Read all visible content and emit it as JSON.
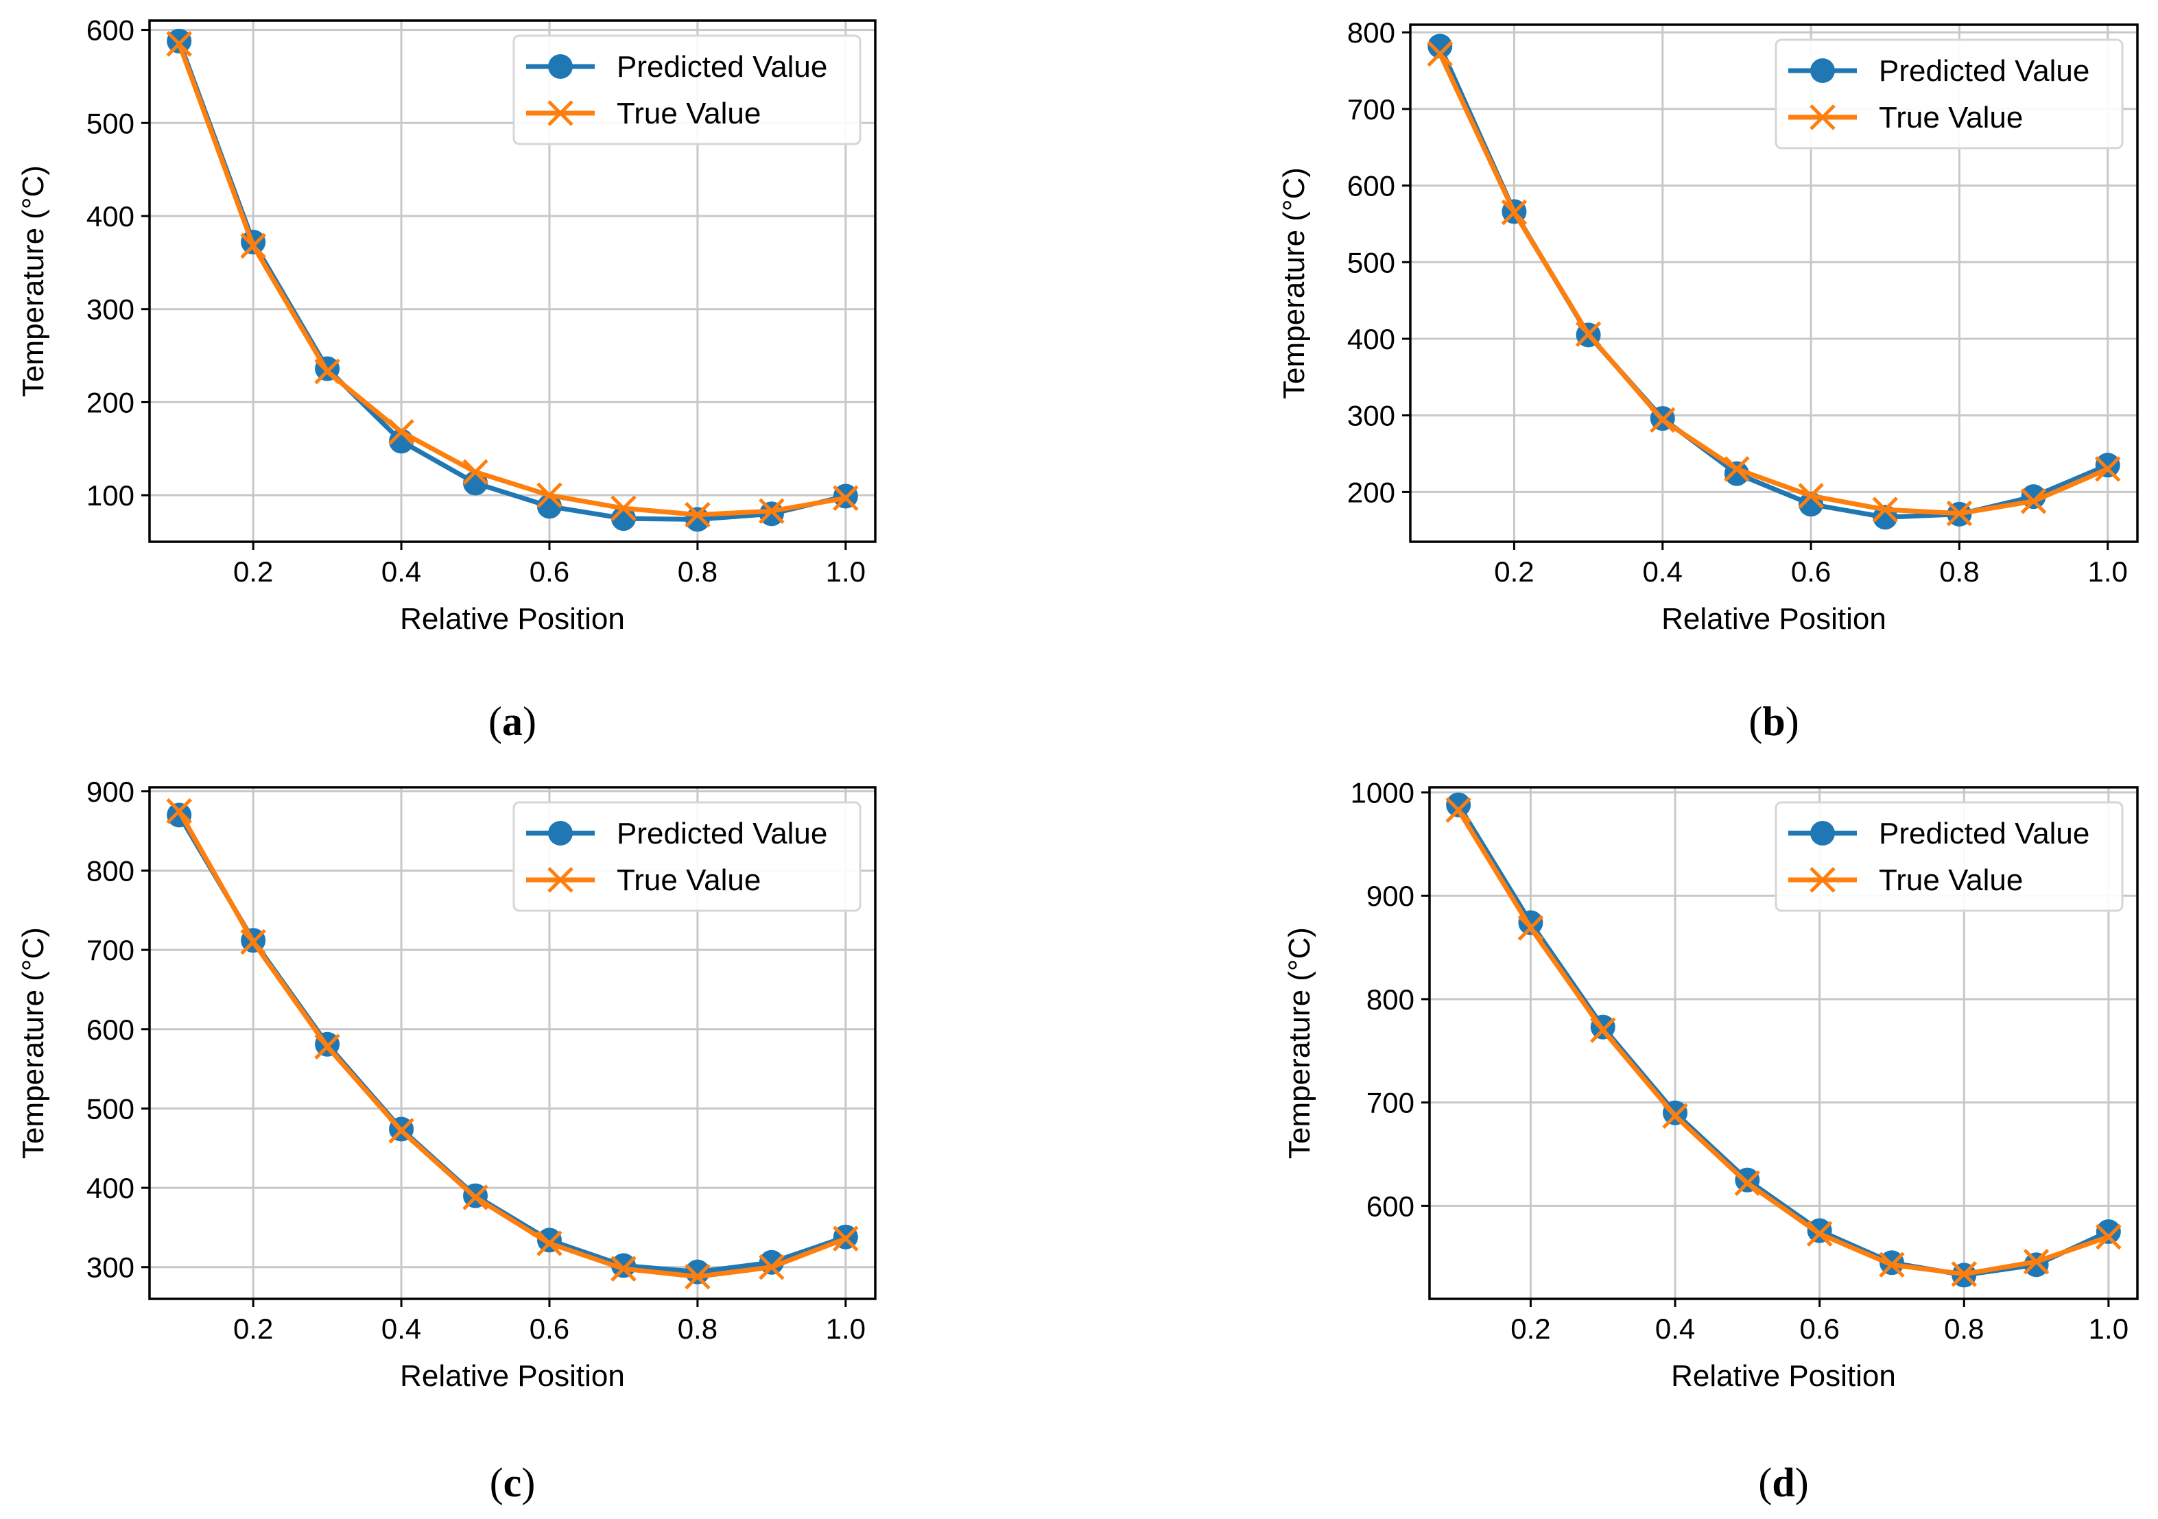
{
  "colors": {
    "predicted": "#1f77b4",
    "true": "#ff7f0e",
    "grid": "#c8c8c8",
    "axis": "#000000",
    "legend_border": "#d6d6d6"
  },
  "chart_data": [
    {
      "type": "line",
      "panel_label": "a",
      "xlabel": "Relative Position",
      "ylabel": "Temperature (°C)",
      "xlim": [
        0.06,
        1.04
      ],
      "ylim": [
        50,
        610
      ],
      "xticks": [
        0.2,
        0.4,
        0.6,
        0.8,
        1.0
      ],
      "xtick_labels": [
        "0.2",
        "0.4",
        "0.6",
        "0.8",
        "1.0"
      ],
      "yticks": [
        100,
        200,
        300,
        400,
        500,
        600
      ],
      "ytick_labels": [
        "100",
        "200",
        "300",
        "400",
        "500",
        "600"
      ],
      "grid": true,
      "legend_position": "top-right",
      "x": [
        0.1,
        0.2,
        0.3,
        0.4,
        0.5,
        0.6,
        0.7,
        0.8,
        0.9,
        1.0
      ],
      "series": [
        {
          "name": "Predicted Value",
          "marker": "circle",
          "values": [
            588,
            372,
            236,
            158,
            113,
            88,
            75,
            74,
            80,
            99
          ]
        },
        {
          "name": "True Value",
          "marker": "x",
          "values": [
            585,
            368,
            233,
            168,
            125,
            100,
            86,
            79,
            83,
            97
          ]
        }
      ]
    },
    {
      "type": "line",
      "panel_label": "b",
      "xlabel": "Relative Position",
      "ylabel": "Temperature (°C)",
      "xlim": [
        0.06,
        1.04
      ],
      "ylim": [
        135,
        810
      ],
      "xticks": [
        0.2,
        0.4,
        0.6,
        0.8,
        1.0
      ],
      "xtick_labels": [
        "0.2",
        "0.4",
        "0.6",
        "0.8",
        "1.0"
      ],
      "yticks": [
        200,
        300,
        400,
        500,
        600,
        700,
        800
      ],
      "ytick_labels": [
        "200",
        "300",
        "400",
        "500",
        "600",
        "700",
        "800"
      ],
      "grid": true,
      "legend_position": "top-right",
      "x": [
        0.1,
        0.2,
        0.3,
        0.4,
        0.5,
        0.6,
        0.7,
        0.8,
        0.9,
        1.0
      ],
      "series": [
        {
          "name": "Predicted Value",
          "marker": "circle",
          "values": [
            782,
            566,
            405,
            296,
            224,
            184,
            167,
            171,
            194,
            235
          ]
        },
        {
          "name": "True Value",
          "marker": "x",
          "values": [
            772,
            565,
            406,
            294,
            230,
            195,
            177,
            172,
            188,
            230
          ]
        }
      ]
    },
    {
      "type": "line",
      "panel_label": "c",
      "xlabel": "Relative Position",
      "ylabel": "Temperature (°C)",
      "xlim": [
        0.06,
        1.04
      ],
      "ylim": [
        260,
        905
      ],
      "xticks": [
        0.2,
        0.4,
        0.6,
        0.8,
        1.0
      ],
      "xtick_labels": [
        "0.2",
        "0.4",
        "0.6",
        "0.8",
        "1.0"
      ],
      "yticks": [
        300,
        400,
        500,
        600,
        700,
        800,
        900
      ],
      "ytick_labels": [
        "300",
        "400",
        "500",
        "600",
        "700",
        "800",
        "900"
      ],
      "grid": true,
      "legend_position": "top-right",
      "x": [
        0.1,
        0.2,
        0.3,
        0.4,
        0.5,
        0.6,
        0.7,
        0.8,
        0.9,
        1.0
      ],
      "series": [
        {
          "name": "Predicted Value",
          "marker": "circle",
          "values": [
            870,
            712,
            581,
            474,
            390,
            334,
            302,
            294,
            306,
            338
          ]
        },
        {
          "name": "True Value",
          "marker": "x",
          "values": [
            875,
            710,
            578,
            472,
            388,
            330,
            298,
            288,
            300,
            336
          ]
        }
      ]
    },
    {
      "type": "line",
      "panel_label": "d",
      "xlabel": "Relative Position",
      "ylabel": "Temperature (°C)",
      "xlim": [
        0.06,
        1.04
      ],
      "ylim": [
        510,
        1005
      ],
      "xticks": [
        0.2,
        0.4,
        0.6,
        0.8,
        1.0
      ],
      "xtick_labels": [
        "0.2",
        "0.4",
        "0.6",
        "0.8",
        "1.0"
      ],
      "yticks": [
        600,
        700,
        800,
        900,
        1000
      ],
      "ytick_labels": [
        "600",
        "700",
        "800",
        "900",
        "1000"
      ],
      "grid": true,
      "legend_position": "top-right",
      "x": [
        0.1,
        0.2,
        0.3,
        0.4,
        0.5,
        0.6,
        0.7,
        0.8,
        0.9,
        1.0
      ],
      "series": [
        {
          "name": "Predicted Value",
          "marker": "circle",
          "values": [
            988,
            874,
            773,
            690,
            625,
            576,
            545,
            533,
            543,
            575
          ]
        },
        {
          "name": "True Value",
          "marker": "x",
          "values": [
            983,
            869,
            770,
            687,
            622,
            573,
            543,
            534,
            546,
            570
          ]
        }
      ]
    }
  ]
}
